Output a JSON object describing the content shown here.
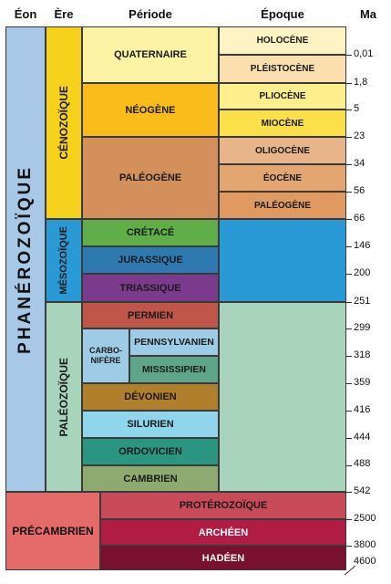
{
  "headers": {
    "eon": "Éon",
    "ere": "Ère",
    "periode": "Période",
    "epoque": "Époque",
    "ma": "Ma"
  },
  "eons": {
    "phanerozoique": "PHANÉROZOÏQUE",
    "precambrien": "PRÉCAMBRIEN"
  },
  "eras": {
    "cenozoique": "CÉNOZOÏQUE",
    "mesozoique": "MÉSOZOÏQUE",
    "paleozoique": "PALÉOZOÏQUE"
  },
  "periods": {
    "quaternaire": "QUATERNAIRE",
    "neogene": "NÉOGÈNE",
    "paleogene": "PALÉOGÈNE",
    "cretace": "CRÉTACÉ",
    "jurassique": "JURASSIQUE",
    "triassique": "TRIASSIQUE",
    "permien": "PERMIEN",
    "carbonifere_1": "CARBO-",
    "carbonifere_2": "NIFÈRE",
    "pennsylvanien": "PENNSYLVANIEN",
    "mississipien": "MISSISSIPIEN",
    "devonien": "DÉVONIEN",
    "silurien": "SILURIEN",
    "ordovicien": "ORDOVICIEN",
    "cambrien": "CAMBRIEN"
  },
  "epochs": {
    "holocene": "HOLOCÈNE",
    "pleistocene": "PLÉISTOCÈNE",
    "pliocene": "PLIOCÈNE",
    "miocene": "MIOCÈNE",
    "oligocene": "OLIGOCÈNE",
    "eocene": "ÉOCÈNE",
    "paleogene": "PALÉOGÈNE"
  },
  "precambrian_eons": {
    "proterozoique": "PROTÉROZOÏQUE",
    "archeen": "ARCHÉEN",
    "hadeen": "HADÉEN"
  },
  "ma": [
    "0,01",
    "1,8",
    "5",
    "23",
    "34",
    "56",
    "66",
    "146",
    "200",
    "251",
    "299",
    "318",
    "359",
    "416",
    "444",
    "488",
    "542",
    "2500",
    "3800",
    "4600"
  ],
  "colors": {
    "phanerozoique": "#a8c8e8",
    "cenozoique": "#f7d21c",
    "mesozoique": "#2a9ad6",
    "paleozoique": "#a8d4bc",
    "quaternaire": "#fdf3a4",
    "neogene": "#f9bc1b",
    "paleogene": "#d4905a",
    "cretace": "#5fae48",
    "jurassique": "#2e7ab0",
    "triassique": "#7b3a8c",
    "permien": "#c0564a",
    "carbonifere": "#9ecce6",
    "devonien": "#b07f2c",
    "silurien": "#8fd6ec",
    "ordovicien": "#2a9580",
    "cambrien": "#8faa70",
    "precambrien": "#e56a6a",
    "proterozoique": "#c94a58",
    "archeen": "#b01c44",
    "hadeen": "#7a1030"
  }
}
